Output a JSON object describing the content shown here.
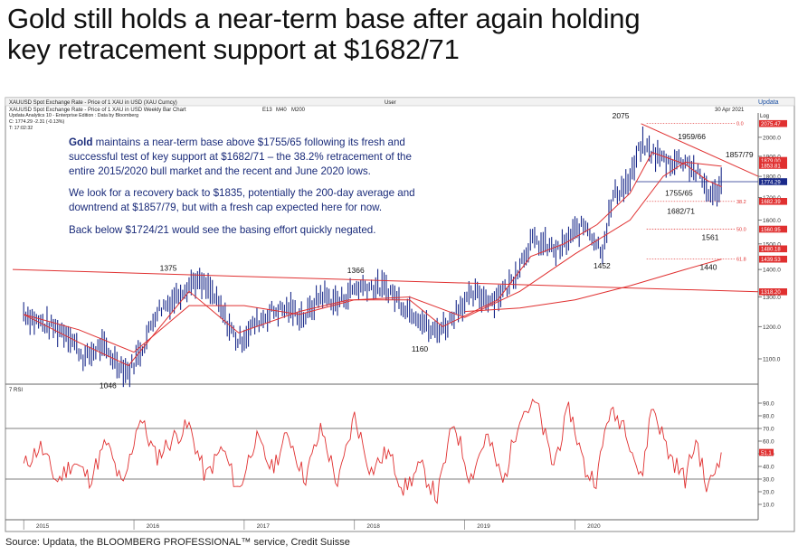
{
  "title": {
    "line1": "Gold still holds a near-term base after again holding",
    "line2": "key retracement support at $1682/71"
  },
  "header": {
    "row1_left": "XAUUSD Spot Exchange Rate - Price of 1 XAU in USD (XAU Curncy)",
    "row1_mid": "User",
    "logo": "Updata",
    "row2_left": "XAUUSD Spot Exchange Rate - Price of 1 XAU in USD Weekly Bar Chart",
    "row2_e": "E13",
    "row2_m40": "M40",
    "row2_m200": "M200",
    "row2_date": "30 Apr 2021",
    "log": "Log",
    "row3": "Updata Analytics 10 - Enterprise Edition : Data by Bloomberg",
    "row4": "C: 1774.29 -2.31 (-0.13%)",
    "row5": "T: 17:02:32"
  },
  "note": {
    "p1_bold": "Gold",
    "p1": " maintains a near-term base above $1755/65 following its fresh and successful test of key support at $1682/71 – the 38.2% retracement of the entire 2015/2020 bull market and the recent and June 2020 lows.",
    "p2": "We look for a recovery back to $1835, potentially the 200-day average and downtrend at $1857/79, but with a fresh cap expected here for now.",
    "p3": "Back below $1724/21 would see the basing effort quickly negated."
  },
  "source": "Source: Updata, the BLOOMBERG PROFESSIONAL™ service, Credit Suisse",
  "colors": {
    "bars": "#1a2a8a",
    "ma": "#e03030",
    "trend": "#e03030",
    "tag": "#e03030",
    "price_tag": "#1a2a8a",
    "axis": "#333333"
  },
  "chart_data": [
    {
      "type": "bar",
      "subtype": "weekly-ohlc",
      "title": "XAUUSD Spot Exchange Rate - Price of 1 XAU in USD Weekly Bar Chart",
      "scale": "log",
      "ylim": [
        1040,
        2120
      ],
      "yticks": [
        1100,
        1200,
        1300,
        1400,
        1500,
        1600,
        1700,
        1800,
        1900,
        2000
      ],
      "xticks": [
        "2015",
        "2016",
        "2017",
        "2018",
        "2019",
        "2020"
      ],
      "series": [
        {
          "name": "XAUUSD weekly close",
          "x": [
            2015.0,
            2015.1,
            2015.25,
            2015.4,
            2015.55,
            2015.7,
            2015.85,
            2015.95,
            2016.1,
            2016.2,
            2016.35,
            2016.45,
            2016.55,
            2016.7,
            2016.85,
            2016.95,
            2017.1,
            2017.25,
            2017.4,
            2017.55,
            2017.7,
            2017.85,
            2018.0,
            2018.1,
            2018.3,
            2018.45,
            2018.6,
            2018.7,
            2018.85,
            2018.95,
            2019.1,
            2019.25,
            2019.4,
            2019.5,
            2019.6,
            2019.7,
            2019.85,
            2020.0,
            2020.1,
            2020.2,
            2020.25,
            2020.35,
            2020.5,
            2020.6,
            2020.7,
            2020.85,
            2020.95,
            2021.0,
            2021.1,
            2021.2,
            2021.25,
            2021.33
          ],
          "values": [
            1250,
            1220,
            1200,
            1180,
            1100,
            1140,
            1090,
            1060,
            1150,
            1250,
            1290,
            1330,
            1360,
            1320,
            1210,
            1150,
            1210,
            1250,
            1260,
            1230,
            1310,
            1280,
            1330,
            1340,
            1330,
            1270,
            1230,
            1180,
            1210,
            1270,
            1310,
            1290,
            1340,
            1420,
            1510,
            1500,
            1470,
            1550,
            1580,
            1500,
            1480,
            1710,
            1780,
            1960,
            1920,
            1870,
            1880,
            1880,
            1820,
            1740,
            1700,
            1774
          ]
        },
        {
          "name": "E13",
          "x": [
            2015.0,
            2015.5,
            2015.95,
            2016.5,
            2016.95,
            2017.5,
            2017.95,
            2018.5,
            2018.8,
            2019.3,
            2019.6,
            2019.9,
            2020.2,
            2020.5,
            2020.7,
            2021.0,
            2021.2,
            2021.33
          ],
          "values": [
            1240,
            1150,
            1080,
            1320,
            1180,
            1250,
            1290,
            1290,
            1200,
            1290,
            1450,
            1500,
            1580,
            1720,
            1920,
            1860,
            1780,
            1750
          ]
        },
        {
          "name": "M40",
          "x": [
            2015.0,
            2015.5,
            2016.0,
            2016.5,
            2017.0,
            2017.5,
            2018.0,
            2018.5,
            2019.0,
            2019.5,
            2020.0,
            2020.5,
            2020.8,
            2021.0,
            2021.33
          ],
          "values": [
            1240,
            1190,
            1120,
            1270,
            1270,
            1240,
            1290,
            1300,
            1230,
            1320,
            1460,
            1600,
            1800,
            1870,
            1850
          ]
        },
        {
          "name": "M200",
          "x": [
            2019.0,
            2019.5,
            2020.0,
            2020.5,
            2021.0,
            2021.33
          ],
          "values": [
            1250,
            1262,
            1290,
            1340,
            1400,
            1440
          ]
        }
      ],
      "annotations": [
        {
          "label": "2075",
          "x": 2020.6,
          "value": 2075
        },
        {
          "label": "1959/66",
          "x": 2020.95,
          "value": 1962
        },
        {
          "label": "1857/79",
          "x": 2021.3,
          "value": 1868
        },
        {
          "label": "1755/65",
          "x": 2020.85,
          "value": 1760
        },
        {
          "label": "1682/71",
          "x": 2020.95,
          "value": 1676
        },
        {
          "label": "1561",
          "x": 2021.1,
          "value": 1561
        },
        {
          "label": "1452",
          "x": 2020.2,
          "value": 1452
        },
        {
          "label": "1440",
          "x": 2021.1,
          "value": 1440
        },
        {
          "label": "1375",
          "x": 2016.3,
          "value": 1375
        },
        {
          "label": "1366",
          "x": 2018.0,
          "value": 1366
        },
        {
          "label": "1160",
          "x": 2018.6,
          "value": 1160
        },
        {
          "label": "1046",
          "x": 2015.9,
          "value": 1046
        }
      ],
      "right_tags": [
        {
          "label": "0.0",
          "value": "2075.47",
          "kind": "fib"
        },
        {
          "label": "",
          "value": "1879.00",
          "kind": "level"
        },
        {
          "label": "",
          "value": "1853.81",
          "kind": "level"
        },
        {
          "label": "",
          "value": "1774.29",
          "kind": "price"
        },
        {
          "label": "38.2",
          "value": "1682.39",
          "kind": "fib"
        },
        {
          "label": "50.0",
          "value": "1560.95",
          "kind": "fib"
        },
        {
          "label": "",
          "value": "1480.18",
          "kind": "level"
        },
        {
          "label": "61.8",
          "value": "1439.53",
          "kind": "fib"
        },
        {
          "label": "",
          "value": "1318.20",
          "kind": "level"
        }
      ]
    },
    {
      "type": "line",
      "title": "7 RSI",
      "ylim": [
        0,
        100
      ],
      "yticks": [
        10,
        20,
        30,
        40,
        50,
        60,
        70,
        80,
        90
      ],
      "reference_lines": [
        30,
        70
      ],
      "last_value": "51.1",
      "series": [
        {
          "name": "RSI 7",
          "x": [
            2015.0,
            2015.15,
            2015.3,
            2015.45,
            2015.6,
            2015.75,
            2015.9,
            2016.05,
            2016.2,
            2016.35,
            2016.5,
            2016.65,
            2016.8,
            2016.95,
            2017.1,
            2017.25,
            2017.4,
            2017.55,
            2017.7,
            2017.85,
            2018.0,
            2018.15,
            2018.3,
            2018.45,
            2018.6,
            2018.75,
            2018.9,
            2019.05,
            2019.2,
            2019.35,
            2019.5,
            2019.65,
            2019.8,
            2019.95,
            2020.1,
            2020.2,
            2020.3,
            2020.45,
            2020.6,
            2020.7,
            2020.85,
            2021.0,
            2021.1,
            2021.2,
            2021.28,
            2021.33
          ],
          "values": [
            40,
            56,
            28,
            44,
            30,
            59,
            22,
            80,
            47,
            62,
            72,
            31,
            55,
            20,
            63,
            38,
            66,
            30,
            70,
            25,
            80,
            36,
            52,
            22,
            40,
            15,
            76,
            30,
            65,
            26,
            82,
            90,
            40,
            86,
            35,
            30,
            82,
            75,
            28,
            90,
            50,
            30,
            62,
            20,
            40,
            51.1
          ]
        }
      ]
    }
  ],
  "x_labels": [
    "2015",
    "2016",
    "2017",
    "2018",
    "2019",
    "2020"
  ],
  "rsi_label": "7 RSI"
}
